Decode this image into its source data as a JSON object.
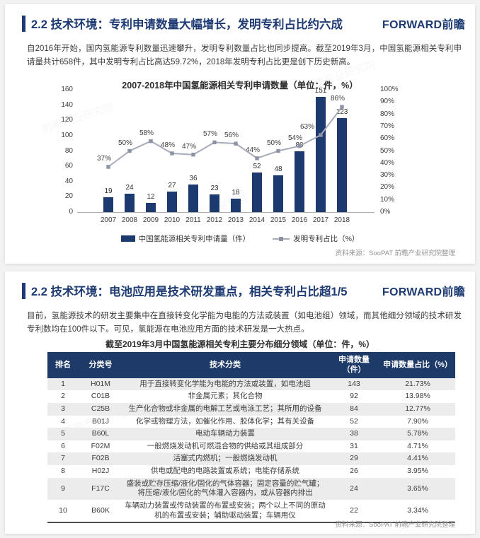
{
  "page": {
    "watermark": "前瞻产业研究院"
  },
  "section1": {
    "title": "2.2 技术环境：专利申请数量大幅增长，发明专利占比约六成",
    "logo": "FORWARD前瞻",
    "paragraph": "自2016年开始，国内氢能源专利数量迅速攀升，发明专利数量占比也同步提高。截至2019年3月，中国氢能源相关专利申请量共计658件，其中发明专利占比高达59.72%，2018年发明专利占比更是创下历史新高。",
    "source": "资料来源：SooPAT 前瞻产业研究院整理"
  },
  "chart_data": {
    "type": "bar",
    "title": "2007-2018年中国氢能源相关专利申请数量（单位：件，%）",
    "categories": [
      "2007",
      "2008",
      "2009",
      "2010",
      "2011",
      "2012",
      "2013",
      "2014",
      "2015",
      "2016",
      "2017",
      "2018"
    ],
    "series": [
      {
        "name": "中国氢能源相关专利申请量（件）",
        "type": "bar",
        "values": [
          19,
          24,
          12,
          27,
          36,
          23,
          18,
          52,
          48,
          80,
          151,
          123
        ]
      },
      {
        "name": "发明专利占比（%）",
        "type": "line",
        "values": [
          37,
          50,
          58,
          48,
          47,
          57,
          56,
          44,
          50,
          54,
          63,
          86
        ]
      }
    ],
    "left_axis": {
      "min": 0,
      "max": 160,
      "step": 20,
      "suffix": ""
    },
    "right_axis": {
      "min": 0,
      "max": 100,
      "step": 10,
      "suffix": "%"
    },
    "grid": false,
    "legend_position": "bottom",
    "colors": {
      "bar": "#1d3a6e",
      "line": "#a8abb8",
      "marker": "#8d93a6"
    }
  },
  "section2": {
    "title": "2.2 技术环境：电池应用是技术研发重点，相关专利占比超1/5",
    "logo": "FORWARD前瞻",
    "paragraph": "目前，氢能源技术的研发主要集中在直接转变化学能为电能的方法或装置（如电池组）领域，而其他细分领域的技术研发专利数均在100件以下。可见，氢能源在电池应用方面的技术研发是一大热点。",
    "table": {
      "title": "截至2019年3月中国氢能源相关专利主要分布细分领域（单位：件，%）",
      "headers": [
        "排名",
        "分类号",
        "技术分类",
        "申请数量\n（件）",
        "申请数量占比（%）"
      ],
      "rows": [
        [
          "1",
          "H01M",
          "用于直接转变化学能为电能的方法或装置，如电池组",
          "143",
          "21.73%"
        ],
        [
          "2",
          "C01B",
          "非金属元素；其化合物",
          "92",
          "13.98%"
        ],
        [
          "3",
          "C25B",
          "生产化合物或非金属的电解工艺或电泳工艺；其所用的设备",
          "84",
          "12.77%"
        ],
        [
          "4",
          "B01J",
          "化学或物理方法，如催化作用、胶体化学；其有关设备",
          "52",
          "7.90%"
        ],
        [
          "5",
          "B60L",
          "电动车辆动力装置",
          "38",
          "5.78%"
        ],
        [
          "6",
          "F02M",
          "一般燃烧发动机可燃混合物的供给或其组成部分",
          "31",
          "4.71%"
        ],
        [
          "7",
          "F02B",
          "活塞式内燃机；一般燃烧发动机",
          "29",
          "4.41%"
        ],
        [
          "8",
          "H02J",
          "供电或配电的电路装置或系统；电能存储系统",
          "26",
          "3.95%"
        ],
        [
          "9",
          "F17C",
          "盛装或贮存压缩/液化/固化的气体容器；固定容量的贮气罐；将压缩/液化/固化的气体灌入容器内，或从容器内排出",
          "24",
          "3.65%"
        ],
        [
          "10",
          "B60K",
          "车辆动力装置或传动装置的布置或安装；两个以上不同的原动机的布置或安装；辅助驱动装置；车辆用仪",
          "22",
          "3.34%"
        ]
      ]
    },
    "source": "资料来源：SooPAT 前瞻产业研究院整理"
  }
}
